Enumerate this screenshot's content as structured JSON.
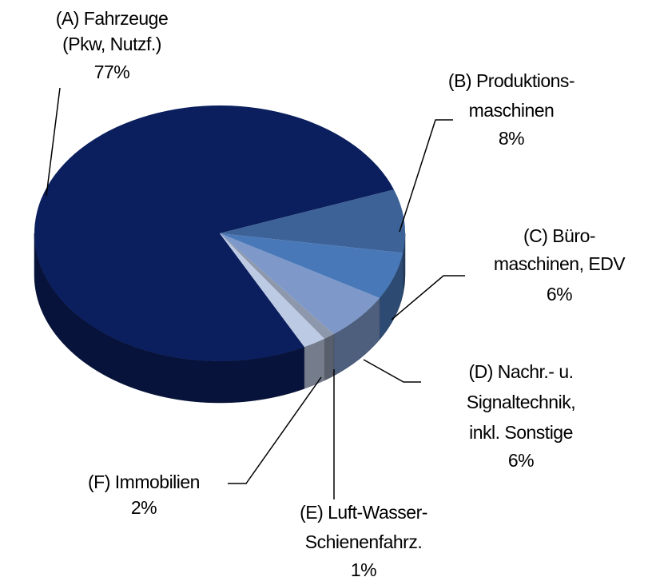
{
  "chart_data": {
    "type": "pie",
    "categories": [
      [
        "(A) Fahrzeuge",
        "(Pkw, Nutzf.)"
      ],
      [
        "(B) Produktions-",
        "maschinen"
      ],
      [
        "(C) Büro-",
        "maschinen, EDV"
      ],
      [
        "(D) Nachr.- u.",
        "Signaltechnik,",
        "inkl. Sonstige"
      ],
      [
        "(E) Luft-Wasser-",
        "Schienenfahrz."
      ],
      [
        "(F) Immobilien"
      ]
    ],
    "values": [
      77,
      8,
      6,
      6,
      1,
      2
    ],
    "value_labels": [
      "77%",
      "8%",
      "6%",
      "6%",
      "1%",
      "2%"
    ],
    "colors": [
      "#0b1f5e",
      "#3d6298",
      "#4878b8",
      "#7d98c9",
      "#8e98ac",
      "#bccae4"
    ]
  }
}
